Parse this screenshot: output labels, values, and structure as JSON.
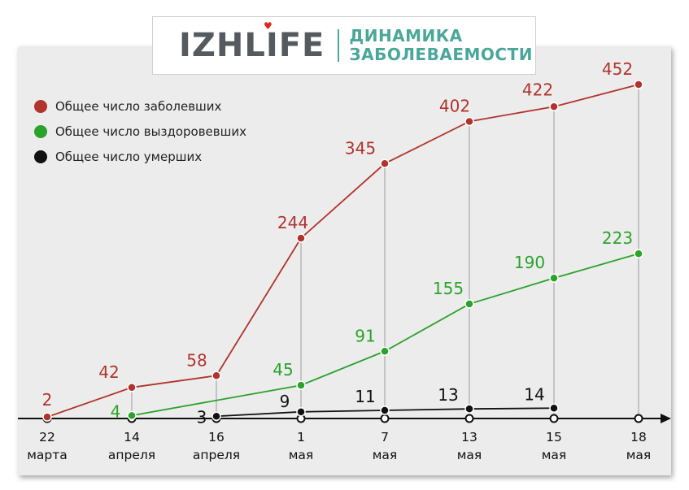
{
  "header": {
    "logo": "IZHLIFE",
    "title_line1": "ДИНАМИКА",
    "title_line2": "ЗАБОЛЕВАЕМОСТИ"
  },
  "colors": {
    "infected": "#b0342c",
    "recovered": "#2aa32a",
    "deaths": "#111111",
    "accent": "#4aa79a"
  },
  "chart_data": {
    "type": "line",
    "title": "ДИНАМИКА ЗАБОЛЕВАЕМОСТИ",
    "xlabel": "",
    "ylabel": "",
    "legend_position": "top-left",
    "grid": false,
    "categories": [
      [
        "22",
        "марта"
      ],
      [
        "14",
        "апреля"
      ],
      [
        "16",
        "апреля"
      ],
      [
        "1",
        "мая"
      ],
      [
        "7",
        "мая"
      ],
      [
        "13",
        "мая"
      ],
      [
        "15",
        "мая"
      ],
      [
        "18",
        "мая"
      ]
    ],
    "series": [
      {
        "name": "Общее число заболевших",
        "color": "#b0342c",
        "values": [
          2,
          42,
          58,
          244,
          345,
          402,
          422,
          452
        ]
      },
      {
        "name": "Общее число выздоровевших",
        "color": "#2aa32a",
        "values": [
          null,
          4,
          null,
          45,
          91,
          155,
          190,
          223
        ]
      },
      {
        "name": "Общее число умерших",
        "color": "#111111",
        "values": [
          null,
          null,
          3,
          9,
          11,
          13,
          14,
          null
        ]
      }
    ]
  }
}
